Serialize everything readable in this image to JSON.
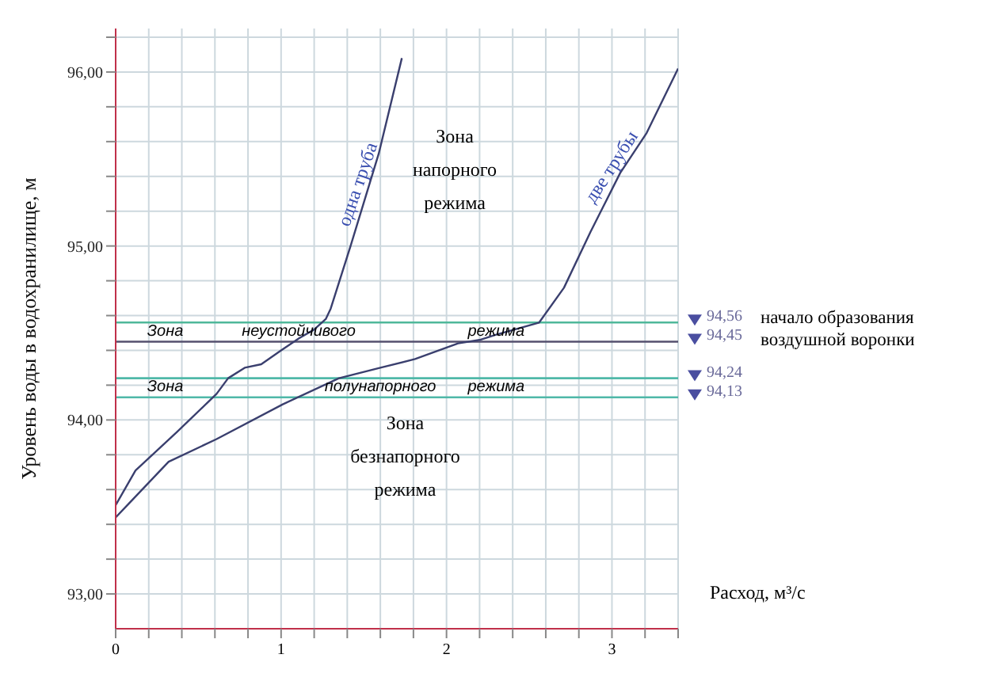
{
  "chart_data": {
    "type": "line",
    "xlabel": "Расход, м³/с",
    "ylabel": "Уровень воды в водохранилище, м",
    "xlim": [
      0,
      3.4
    ],
    "ylim": [
      92.8,
      96.25
    ],
    "xticks": [
      0,
      {
        "value": 0.2,
        "label": null
      },
      {
        "value": 0.4,
        "label": null
      },
      {
        "value": 0.6,
        "label": null
      },
      {
        "value": 0.8,
        "label": null
      },
      1,
      {
        "value": 1.2,
        "label": null
      },
      {
        "value": 1.4,
        "label": null
      },
      {
        "value": 1.6,
        "label": null
      },
      {
        "value": 1.8,
        "label": null
      },
      2,
      {
        "value": 2.2,
        "label": null
      },
      {
        "value": 2.4,
        "label": null
      },
      {
        "value": 2.6,
        "label": null
      },
      {
        "value": 2.8,
        "label": null
      },
      3,
      {
        "value": 3.2,
        "label": null
      },
      {
        "value": 3.4,
        "label": null
      }
    ],
    "yticks": [
      {
        "value": 93,
        "label": "93,00"
      },
      {
        "value": 93.2,
        "label": null
      },
      {
        "value": 93.4,
        "label": null
      },
      {
        "value": 93.6,
        "label": null
      },
      {
        "value": 93.8,
        "label": null
      },
      {
        "value": 94,
        "label": "94,00"
      },
      {
        "value": 94.2,
        "label": null
      },
      {
        "value": 94.4,
        "label": null
      },
      {
        "value": 94.6,
        "label": null
      },
      {
        "value": 94.8,
        "label": null
      },
      {
        "value": 95,
        "label": "95,00"
      },
      {
        "value": 95.2,
        "label": null
      },
      {
        "value": 95.4,
        "label": null
      },
      {
        "value": 95.6,
        "label": null
      },
      {
        "value": 95.8,
        "label": null
      },
      {
        "value": 96,
        "label": "96,00"
      },
      {
        "value": 96.2,
        "label": null
      }
    ],
    "grid": true,
    "legend": false,
    "marker": "none",
    "line_style": "solid",
    "series": [
      {
        "name": "одна труба",
        "color": "#3a3f6e",
        "x": [
          0,
          0.12,
          0.37,
          0.61,
          0.68,
          0.78,
          0.88,
          1.0,
          1.11,
          1.2,
          1.27,
          1.3,
          1.42,
          1.59,
          1.73
        ],
        "values": [
          93.51,
          93.71,
          93.93,
          94.15,
          94.24,
          94.3,
          94.32,
          94.4,
          94.47,
          94.52,
          94.58,
          94.64,
          95.0,
          95.53,
          96.08
        ]
      },
      {
        "name": "две трубы",
        "color": "#3a3f6e",
        "x": [
          0,
          0.08,
          0.32,
          0.61,
          1.01,
          1.35,
          1.6,
          1.81,
          2.07,
          2.2,
          2.3,
          2.45,
          2.56,
          2.71,
          2.87,
          3.05,
          3.21,
          3.4
        ],
        "values": [
          93.44,
          93.52,
          93.76,
          93.89,
          94.09,
          94.24,
          94.3,
          94.35,
          94.44,
          94.46,
          94.49,
          94.53,
          94.56,
          94.76,
          95.08,
          95.42,
          95.65,
          96.02
        ]
      }
    ],
    "ref_lines": [
      {
        "axis": "y",
        "value": 94.56,
        "label": "94,56",
        "color": "#4fb89a"
      },
      {
        "axis": "y",
        "value": 94.45,
        "label": "94,45",
        "color": "#55506e"
      },
      {
        "axis": "y",
        "value": 94.24,
        "label": "94,24",
        "color": "#4fb8a8"
      },
      {
        "axis": "y",
        "value": 94.13,
        "label": "94,13",
        "color": "#4fb8a8"
      }
    ],
    "annotations": [
      "Зона напорного режима",
      "Зона безнапорного режима",
      "Зона неустойчивого режима",
      "Зона полунапорного режима",
      "начало образования воздушной воронки"
    ]
  }
}
